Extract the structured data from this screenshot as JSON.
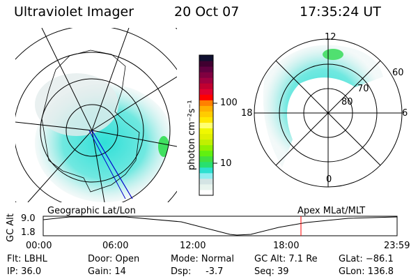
{
  "header": {
    "instrument": "Ultraviolet Imager",
    "date": "20 Oct 07",
    "time": "17:35:24 UT"
  },
  "colorbar": {
    "label": "photon cm⁻²s⁻¹",
    "ticks": [
      "100",
      "10"
    ],
    "colors": [
      "#ffffff",
      "#e8f4ee",
      "#d4e4e4",
      "#90eef0",
      "#2ee0d0",
      "#28e070",
      "#40e040",
      "#60f010",
      "#90f000",
      "#c0f000",
      "#e0f000",
      "#f0f800",
      "#ffff70",
      "#ffe800",
      "#ffcc00",
      "#ffb000",
      "#ff8000",
      "#ff0000",
      "#e00030",
      "#c00030",
      "#a00040",
      "#800040",
      "#600040",
      "#400030",
      "#101030"
    ]
  },
  "left_plot": {
    "label": "Geographic Lat/Lon"
  },
  "right_plot": {
    "label": "Apex MLat/MLT",
    "mlt_labels": {
      "top": "12",
      "left": "18",
      "right": "6",
      "bottom": "0"
    },
    "lat_labels": [
      "60",
      "70",
      "80"
    ]
  },
  "timeline": {
    "ylabel": "GC Alt",
    "yticks": [
      "9.0",
      "1.8"
    ],
    "xticks": [
      "00:00",
      "06:00",
      "12:00",
      "18:00",
      "23:59"
    ],
    "current_time_color": "#ff0000"
  },
  "info": {
    "flt": "Flt: LBHL",
    "ip": "IP: 36.0",
    "door": "Door: Open",
    "gain": "Gain: 14",
    "mode": "Mode: Normal",
    "dsp": "Dsp:     -3.7",
    "gcalt": "GC Alt: 7.1 Re",
    "seq": "Seq: 39",
    "glat": "GLat: −86.1",
    "glon": "GLon: 136.8"
  }
}
